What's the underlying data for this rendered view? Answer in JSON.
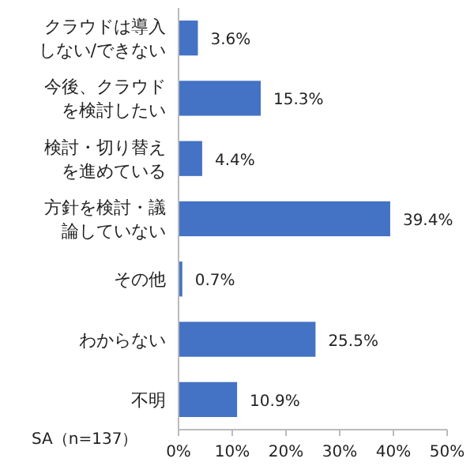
{
  "chart_data": {
    "type": "bar",
    "orientation": "horizontal",
    "categories": [
      "クラウドは導入しない/できない",
      "今後、クラウドを検討したい",
      "検討・切り替えを進めている",
      "方針を検討・議論していない",
      "その他",
      "わからない",
      "不明"
    ],
    "values": [
      3.6,
      15.3,
      4.4,
      39.4,
      0.7,
      25.5,
      10.9
    ],
    "value_labels": [
      "3.6%",
      "15.3%",
      "4.4%",
      "39.4%",
      "0.7%",
      "25.5%",
      "10.9%"
    ],
    "color": "#4472c4",
    "xlim": [
      0,
      50
    ],
    "xticks": [
      {
        "value": 0,
        "label": "0%"
      },
      {
        "value": 10,
        "label": "10%"
      },
      {
        "value": 20,
        "label": "20%"
      },
      {
        "value": 30,
        "label": "30%"
      },
      {
        "value": 40,
        "label": "40%"
      },
      {
        "value": 50,
        "label": "50%"
      }
    ],
    "grid": false,
    "annotations": [
      "SA（n=137）"
    ]
  }
}
